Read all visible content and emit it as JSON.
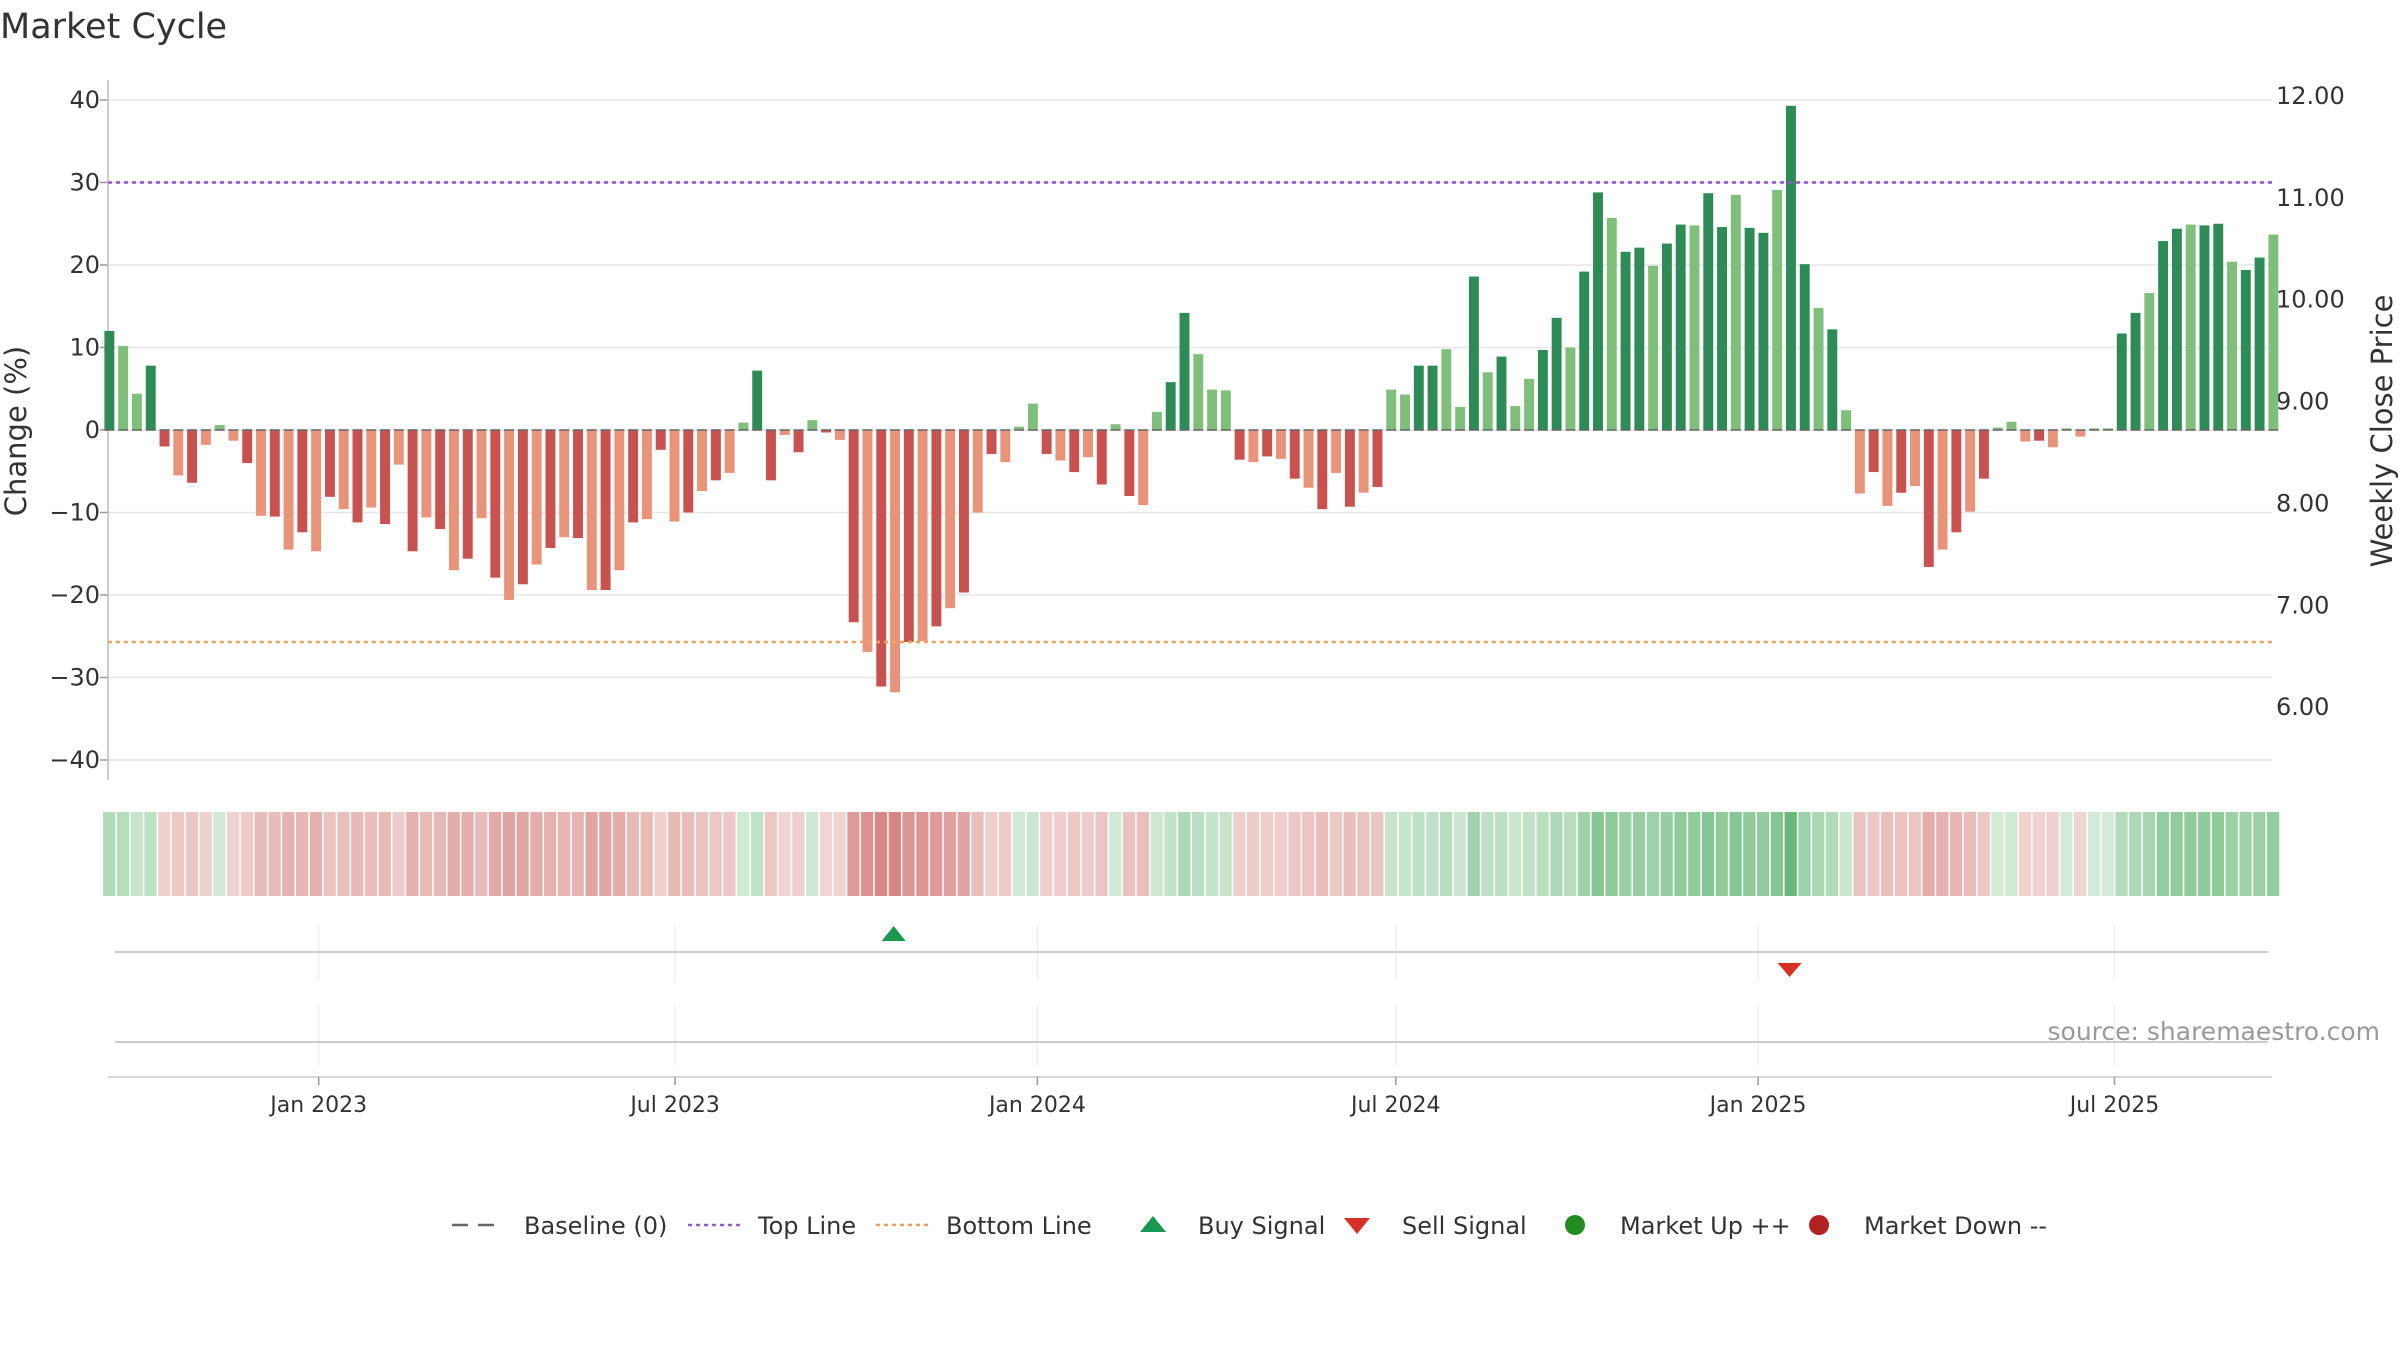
{
  "chart_data": {
    "type": "bar",
    "title": "Market Cycle",
    "ylabel": "Change (%)",
    "y2label": "Weekly Close Price",
    "ylim": [
      -40,
      40
    ],
    "y_ticks": [
      40,
      30,
      20,
      10,
      0,
      -10,
      -20,
      -30,
      -40
    ],
    "y_tick_labels": [
      "40",
      "30",
      "20",
      "10",
      "0",
      "−10",
      "−20",
      "−30",
      "−40"
    ],
    "y2lim": [
      6.0,
      12.0
    ],
    "y2_ticks": [
      12.0,
      11.0,
      10.0,
      9.0,
      8.0,
      7.0,
      6.0
    ],
    "y2_tick_labels": [
      "12.00",
      "11.00",
      "10.00",
      "9.00",
      "8.00",
      "7.00",
      "6.00"
    ],
    "x_range": [
      "2022-09-16",
      "2025-09-19"
    ],
    "x_ticks": [
      {
        "date": "2023-01-01",
        "label": "Jan 2023"
      },
      {
        "date": "2023-07-01",
        "label": "Jul 2023"
      },
      {
        "date": "2024-01-01",
        "label": "Jan 2024"
      },
      {
        "date": "2024-07-01",
        "label": "Jul 2024"
      },
      {
        "date": "2025-01-01",
        "label": "Jan 2025"
      },
      {
        "date": "2025-07-01",
        "label": "Jul 2025"
      }
    ],
    "first_week": "2022-09-16",
    "week_step_days": 7,
    "values": [
      12.0,
      10.2,
      4.4,
      7.8,
      -2.0,
      -5.5,
      -6.4,
      -1.8,
      0.6,
      -1.3,
      -4.0,
      -10.4,
      -10.5,
      -14.5,
      -12.4,
      -14.7,
      -8.1,
      -9.6,
      -11.2,
      -9.4,
      -11.4,
      -4.2,
      -14.7,
      -10.6,
      -12.0,
      -17.0,
      -15.6,
      -10.7,
      -17.9,
      -20.6,
      -18.7,
      -16.3,
      -14.3,
      -13.0,
      -13.1,
      -19.4,
      -19.4,
      -17.0,
      -11.2,
      -10.8,
      -2.4,
      -11.1,
      -10.0,
      -7.4,
      -6.1,
      -5.2,
      0.9,
      7.2,
      -6.1,
      -0.6,
      -2.7,
      1.2,
      -0.3,
      -1.2,
      -23.3,
      -26.9,
      -31.1,
      -31.8,
      -25.7,
      -25.6,
      -23.8,
      -21.6,
      -19.7,
      -10.0,
      -2.9,
      -3.9,
      0.4,
      3.2,
      -2.9,
      -3.7,
      -5.1,
      -3.3,
      -6.6,
      0.7,
      -8.0,
      -9.1,
      2.2,
      5.8,
      14.2,
      9.2,
      4.9,
      4.8,
      -3.6,
      -3.9,
      -3.2,
      -3.5,
      -5.9,
      -7.0,
      -9.6,
      -5.2,
      -9.3,
      -7.6,
      -6.9,
      4.9,
      4.3,
      7.8,
      7.8,
      9.8,
      2.8,
      18.6,
      7.0,
      8.9,
      2.9,
      6.2,
      9.7,
      13.6,
      10.0,
      19.2,
      28.8,
      25.7,
      21.6,
      22.1,
      19.9,
      22.6,
      24.9,
      24.8,
      28.7,
      24.6,
      28.5,
      24.5,
      23.9,
      29.1,
      39.3,
      20.1,
      14.8,
      12.2,
      2.4,
      -7.7,
      -5.1,
      -9.2,
      -7.6,
      -6.8,
      -16.6,
      -14.5,
      -12.4,
      -9.9,
      -5.9,
      0.3,
      1.0,
      -1.4,
      -1.3,
      -2.1,
      0.2,
      -0.8,
      0.2,
      0.2,
      11.7,
      14.2,
      16.6,
      22.9,
      24.4,
      24.9,
      24.8,
      25.0,
      20.4,
      19.4,
      20.9,
      23.7
    ],
    "top_line": 30,
    "bottom_line": -25.7,
    "buy_signals": [
      {
        "date": "2023-10-20"
      }
    ],
    "sell_signals": [
      {
        "date": "2025-01-17"
      }
    ],
    "colors": {
      "up_strong": "#2e8b57",
      "up_light": "#7fbf7b",
      "down_strong": "#c85250",
      "down_light": "#e8947a",
      "top_line": "#9955cc",
      "bottom_line": "#f0a060",
      "baseline": "#666666",
      "buy": "#1a9850",
      "sell": "#d73027",
      "market_up": "#228b22",
      "market_down": "#b22222",
      "strip_green": "#4dab5f",
      "strip_red": "#c65a55"
    },
    "legend_position": "bottom",
    "legend": [
      {
        "key": "baseline",
        "label": "Baseline (0)",
        "symbol": "dash",
        "color": "#666666"
      },
      {
        "key": "top",
        "label": "Top Line",
        "symbol": "dot-line",
        "color": "#9955cc"
      },
      {
        "key": "bottom",
        "label": "Bottom Line",
        "symbol": "dot-line",
        "color": "#f0a060"
      },
      {
        "key": "buy",
        "label": "Buy Signal",
        "symbol": "triangle-up",
        "color": "#1a9850"
      },
      {
        "key": "sell",
        "label": "Sell Signal",
        "symbol": "triangle-down",
        "color": "#d73027"
      },
      {
        "key": "mup",
        "label": "Market Up ++",
        "symbol": "circle",
        "color": "#228b22"
      },
      {
        "key": "mdown",
        "label": "Market Down --",
        "symbol": "circle",
        "color": "#b22222"
      }
    ],
    "source": "source: sharemaestro.com",
    "grid": true
  }
}
